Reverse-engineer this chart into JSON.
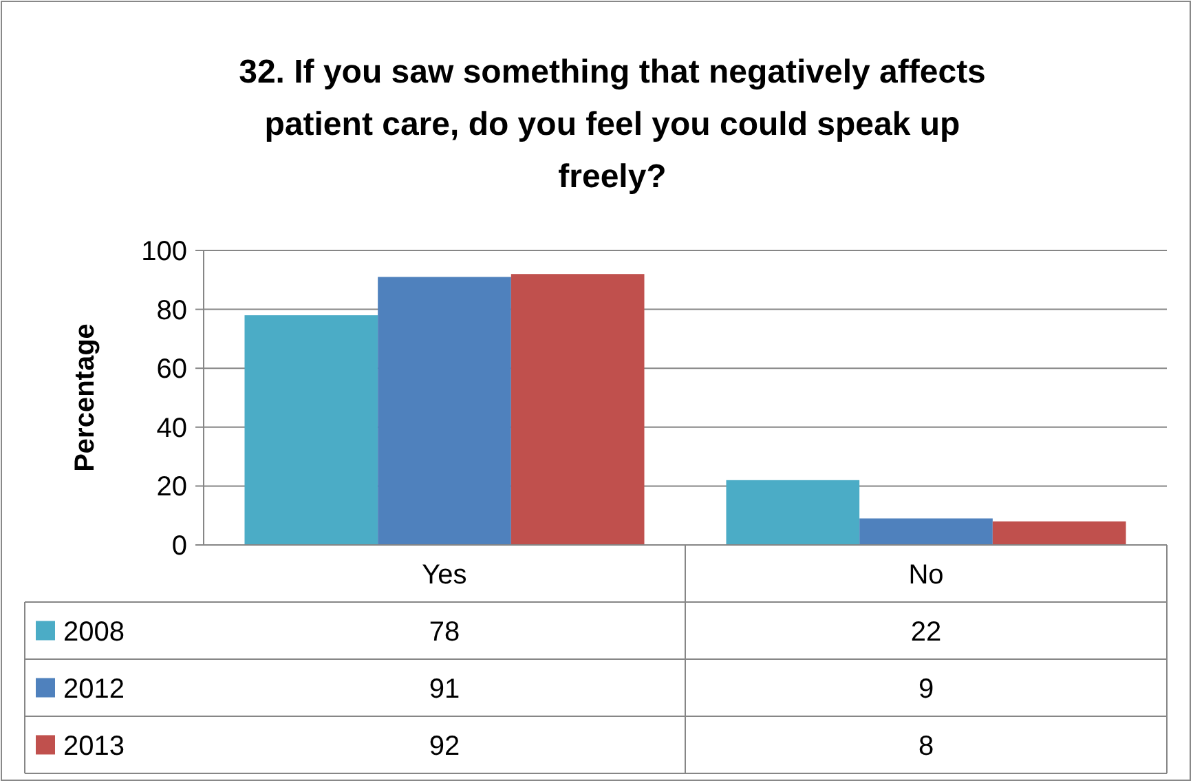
{
  "chart_data": {
    "type": "bar",
    "title": "32. If you saw something that negatively affects patient care, do you feel you could speak up freely?",
    "ylabel": "Percentage",
    "categories": [
      "Yes",
      "No"
    ],
    "series": [
      {
        "name": "2008",
        "color": "#4bacc6",
        "values": [
          78,
          22
        ]
      },
      {
        "name": "2012",
        "color": "#4f81bd",
        "values": [
          91,
          9
        ]
      },
      {
        "name": "2013",
        "color": "#c0504d",
        "values": [
          92,
          8
        ]
      }
    ],
    "ylim": [
      0,
      100
    ],
    "yticks": [
      0,
      20,
      40,
      60,
      80,
      100
    ],
    "grid": "y",
    "legend": "bottom",
    "data_labels": true
  }
}
